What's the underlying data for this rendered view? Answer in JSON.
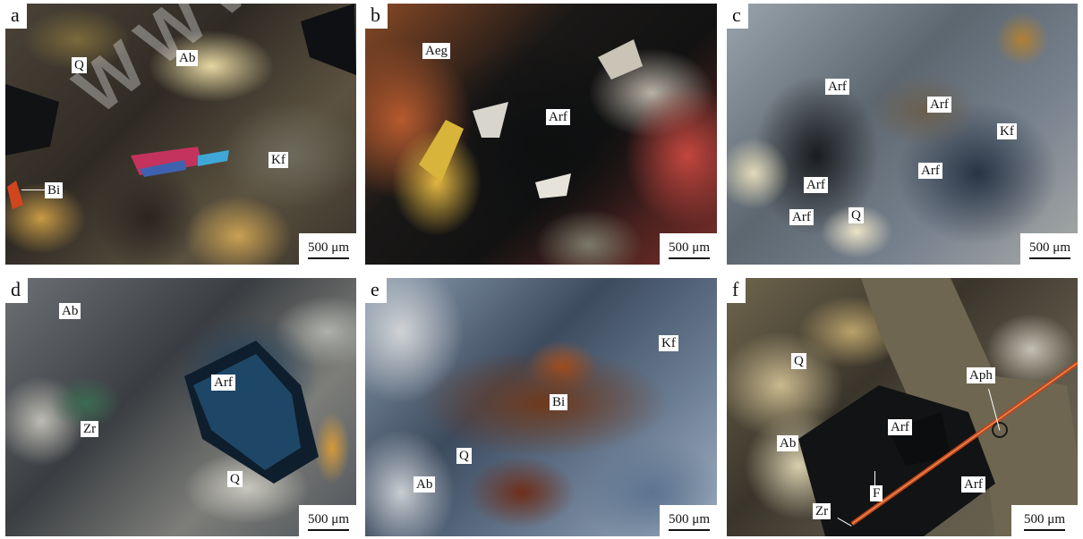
{
  "figure": {
    "watermark": "WWW.YSKW.",
    "panels": [
      {
        "id": "a",
        "scale": "500 μm",
        "labels": [
          {
            "text": "Q"
          },
          {
            "text": "Ab"
          },
          {
            "text": "Kf"
          },
          {
            "text": "Bi"
          }
        ]
      },
      {
        "id": "b",
        "scale": "500 μm",
        "labels": [
          {
            "text": "Aeg"
          },
          {
            "text": "Arf"
          }
        ]
      },
      {
        "id": "c",
        "scale": "500 μm",
        "labels": [
          {
            "text": "Arf"
          },
          {
            "text": "Arf"
          },
          {
            "text": "Kf"
          },
          {
            "text": "Arf"
          },
          {
            "text": "Arf"
          },
          {
            "text": "Arf"
          },
          {
            "text": "Q"
          }
        ]
      },
      {
        "id": "d",
        "scale": "500 μm",
        "labels": [
          {
            "text": "Ab"
          },
          {
            "text": "Arf"
          },
          {
            "text": "Zr"
          },
          {
            "text": "Q"
          }
        ]
      },
      {
        "id": "e",
        "scale": "500 μm",
        "labels": [
          {
            "text": "Kf"
          },
          {
            "text": "Bi"
          },
          {
            "text": "Q"
          },
          {
            "text": "Ab"
          }
        ]
      },
      {
        "id": "f",
        "scale": "500 μm",
        "labels": [
          {
            "text": "Q"
          },
          {
            "text": "Aph"
          },
          {
            "text": "Arf"
          },
          {
            "text": "Ab"
          },
          {
            "text": "F"
          },
          {
            "text": "Arf"
          },
          {
            "text": "Zr"
          }
        ]
      }
    ]
  }
}
